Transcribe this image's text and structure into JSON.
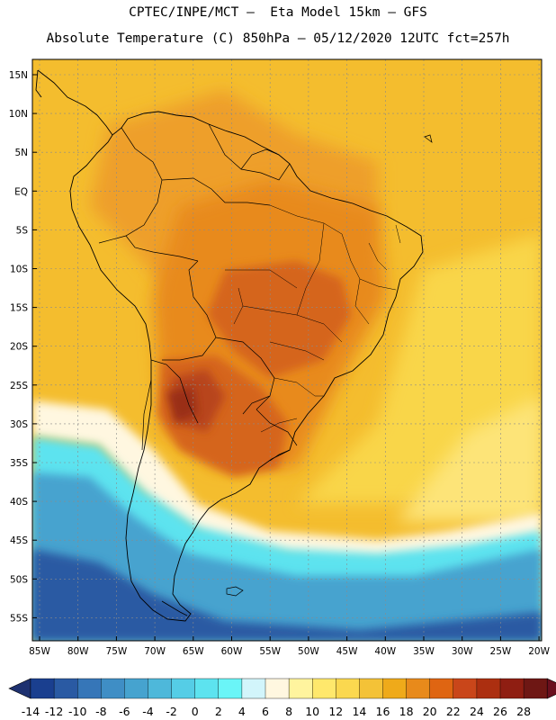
{
  "header": {
    "title_line1": "CPTEC/INPE/MCT –  Eta Model 15km – GFS",
    "title_line2": "Absolute Temperature (C) 850hPa – 05/12/2020 12UTC fct=257h"
  },
  "map": {
    "lat_labels": [
      "15N",
      "10N",
      "5N",
      "EQ",
      "5S",
      "10S",
      "15S",
      "20S",
      "25S",
      "30S",
      "35S",
      "40S",
      "45S",
      "50S",
      "55S"
    ],
    "lon_labels": [
      "85W",
      "80W",
      "75W",
      "70W",
      "65W",
      "60W",
      "55W",
      "50W",
      "45W",
      "40W",
      "35W",
      "30W",
      "25W",
      "20W"
    ]
  },
  "colorbar": {
    "ticks": [
      "-14",
      "-12",
      "-10",
      "-8",
      "-6",
      "-4",
      "-2",
      "0",
      "2",
      "4",
      "6",
      "8",
      "10",
      "12",
      "14",
      "16",
      "18",
      "20",
      "22",
      "24",
      "26",
      "28"
    ],
    "colors": [
      "#1a3f8f",
      "#2a5aa3",
      "#3676b8",
      "#3f8ec5",
      "#46a3cf",
      "#4eb8da",
      "#55cde6",
      "#5de3ef",
      "#6af5f7",
      "#d2f5fb",
      "#fff7e0",
      "#fff49e",
      "#ffe86c",
      "#fbd84f",
      "#f4c237",
      "#efaa1a",
      "#e88a1b",
      "#df6512",
      "#c9461a",
      "#ac2f10",
      "#8f1e12",
      "#6e1714"
    ],
    "low_arrow_color": "#1e3170",
    "high_arrow_color": "#6a0f1e"
  }
}
